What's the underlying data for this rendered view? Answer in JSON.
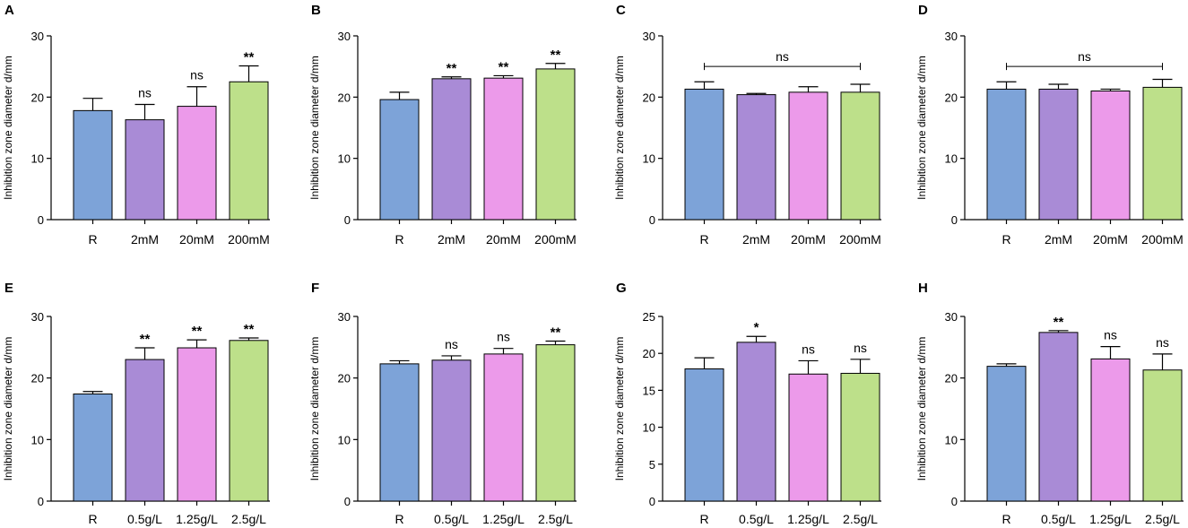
{
  "colors": {
    "R": "#7da3d8",
    "2mM": "#a98bd6",
    "20mM": "#ec9aea",
    "200mM": "#bde08a",
    "axis": "#000000"
  },
  "chart_data": [
    {
      "panel": "A",
      "type": "bar",
      "ylabel": "Inhibition zone diameter d/mm",
      "ylim": [
        0,
        30
      ],
      "yticks": [
        0,
        10,
        20,
        30
      ],
      "categories": [
        "R",
        "2mM",
        "20mM",
        "200mM"
      ],
      "values": [
        17.8,
        16.3,
        18.5,
        22.5
      ],
      "errors": [
        2.0,
        2.5,
        3.2,
        2.6
      ],
      "significance": [
        "",
        "ns",
        "ns",
        "**"
      ],
      "bracket": ""
    },
    {
      "panel": "B",
      "type": "bar",
      "ylabel": "Inhibition zone diameter d/mm",
      "ylim": [
        0,
        30
      ],
      "yticks": [
        0,
        10,
        20,
        30
      ],
      "categories": [
        "R",
        "2mM",
        "20mM",
        "200mM"
      ],
      "values": [
        19.6,
        23.0,
        23.1,
        24.6
      ],
      "errors": [
        1.2,
        0.3,
        0.4,
        0.9
      ],
      "significance": [
        "",
        "**",
        "**",
        "**"
      ],
      "bracket": ""
    },
    {
      "panel": "C",
      "type": "bar",
      "ylabel": "Inhibition zone diameter d/mm",
      "ylim": [
        0,
        30
      ],
      "yticks": [
        0,
        10,
        20,
        30
      ],
      "categories": [
        "R",
        "2mM",
        "20mM",
        "200mM"
      ],
      "values": [
        21.3,
        20.4,
        20.8,
        20.8
      ],
      "errors": [
        1.2,
        0.2,
        0.9,
        1.3
      ],
      "significance": [
        "",
        "",
        "",
        ""
      ],
      "bracket": "ns"
    },
    {
      "panel": "D",
      "type": "bar",
      "ylabel": "Inhibition zone diameter d/mm",
      "ylim": [
        0,
        30
      ],
      "yticks": [
        0,
        10,
        20,
        30
      ],
      "categories": [
        "R",
        "2mM",
        "20mM",
        "200mM"
      ],
      "values": [
        21.3,
        21.3,
        21.0,
        21.6
      ],
      "errors": [
        1.2,
        0.8,
        0.3,
        1.3
      ],
      "significance": [
        "",
        "",
        "",
        ""
      ],
      "bracket": "ns"
    },
    {
      "panel": "E",
      "type": "bar",
      "ylabel": "Inhibition zone diameter d/mm",
      "ylim": [
        0,
        30
      ],
      "yticks": [
        0,
        10,
        20,
        30
      ],
      "categories": [
        "R",
        "0.5g/L",
        "1.25g/L",
        "2.5g/L"
      ],
      "values": [
        17.4,
        23.0,
        24.9,
        26.1
      ],
      "errors": [
        0.4,
        1.9,
        1.3,
        0.4
      ],
      "significance": [
        "",
        "**",
        "**",
        "**"
      ],
      "bracket": ""
    },
    {
      "panel": "F",
      "type": "bar",
      "ylabel": "Inhibition zone diameter d/mm",
      "ylim": [
        0,
        30
      ],
      "yticks": [
        0,
        10,
        20,
        30
      ],
      "categories": [
        "R",
        "0.5g/L",
        "1.25g/L",
        "2.5g/L"
      ],
      "values": [
        22.3,
        22.9,
        23.9,
        25.4
      ],
      "errors": [
        0.5,
        0.7,
        0.9,
        0.6
      ],
      "significance": [
        "",
        "ns",
        "ns",
        "**"
      ],
      "bracket": ""
    },
    {
      "panel": "G",
      "type": "bar",
      "ylabel": "Inhibition zone diameter d/mm",
      "ylim": [
        0,
        25
      ],
      "yticks": [
        0,
        5,
        10,
        15,
        20,
        25
      ],
      "categories": [
        "R",
        "0.5g/L",
        "1.25g/L",
        "2.5g/L"
      ],
      "values": [
        17.9,
        21.5,
        17.2,
        17.3
      ],
      "errors": [
        1.5,
        0.8,
        1.8,
        1.9
      ],
      "significance": [
        "",
        "*",
        "ns",
        "ns"
      ],
      "bracket": ""
    },
    {
      "panel": "H",
      "type": "bar",
      "ylabel": "Inhibition zone diameter d/mm",
      "ylim": [
        0,
        30
      ],
      "yticks": [
        0,
        10,
        20,
        30
      ],
      "categories": [
        "R",
        "0.5g/L",
        "1.25g/L",
        "2.5g/L"
      ],
      "values": [
        21.9,
        27.4,
        23.1,
        21.3
      ],
      "errors": [
        0.4,
        0.3,
        2.0,
        2.6
      ],
      "significance": [
        "",
        "**",
        "ns",
        "ns"
      ],
      "bracket": ""
    }
  ]
}
